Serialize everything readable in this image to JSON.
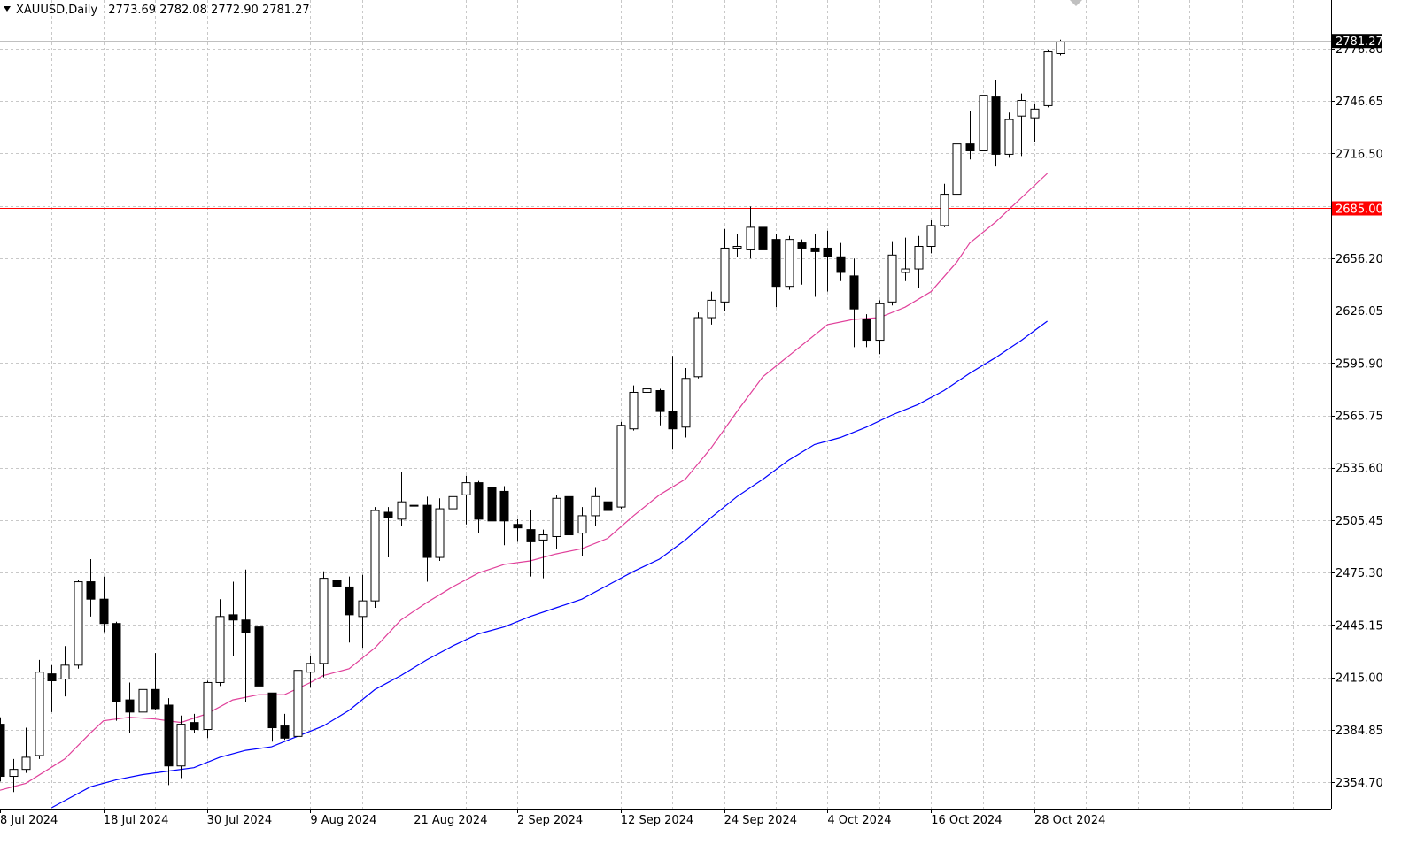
{
  "header": {
    "symbol": "XAUUSD,Daily",
    "ohlc": "2773.69 2782.08 2772.90 2781.27"
  },
  "price_tag": {
    "value": "2781.27",
    "price": 2781.27
  },
  "level_line": {
    "value": "2685.00",
    "price": 2685.0,
    "color": "#ff0000"
  },
  "colors": {
    "grid": "#c8c8c8",
    "candle_border": "#000000",
    "bull_fill": "#ffffff",
    "bear_fill": "#000000",
    "ma_fast": "#e0409a",
    "ma_slow": "#0000ff"
  },
  "chart_data": {
    "type": "candlestick",
    "price_axis": {
      "ticks": [
        2776.8,
        2746.65,
        2716.5,
        2686.35,
        2656.2,
        2626.05,
        2595.9,
        2565.75,
        2535.6,
        2505.45,
        2475.3,
        2445.15,
        2415.0,
        2384.85,
        2354.7
      ],
      "labels": [
        "2776.80",
        "2746.65",
        "2716.50",
        "2686.35",
        "2656.20",
        "2626.05",
        "2595.90",
        "2565.75",
        "2535.60",
        "2505.45",
        "2475.30",
        "2445.15",
        "2415.00",
        "2384.85",
        "2354.70"
      ],
      "range": [
        2340.0,
        2800.0
      ]
    },
    "time_axis": {
      "labels": [
        "8 Jul 2024",
        "18 Jul 2024",
        "30 Jul 2024",
        "9 Aug 2024",
        "21 Aug 2024",
        "2 Sep 2024",
        "12 Sep 2024",
        "24 Sep 2024",
        "4 Oct 2024",
        "16 Oct 2024",
        "28 Oct 2024"
      ],
      "label_bar_index": [
        0,
        8,
        16,
        24,
        32,
        40,
        48,
        56,
        64,
        72,
        80
      ]
    },
    "grid": true,
    "candles": [
      {
        "o": 2388,
        "h": 2392,
        "l": 2355,
        "c": 2358
      },
      {
        "o": 2358,
        "h": 2368,
        "l": 2349,
        "c": 2362
      },
      {
        "o": 2362,
        "h": 2386,
        "l": 2360,
        "c": 2369
      },
      {
        "o": 2370,
        "h": 2425,
        "l": 2368,
        "c": 2418
      },
      {
        "o": 2417,
        "h": 2422,
        "l": 2395,
        "c": 2413
      },
      {
        "o": 2414,
        "h": 2433,
        "l": 2404,
        "c": 2422
      },
      {
        "o": 2422,
        "h": 2471,
        "l": 2420,
        "c": 2470
      },
      {
        "o": 2470,
        "h": 2483,
        "l": 2450,
        "c": 2460
      },
      {
        "o": 2460,
        "h": 2473,
        "l": 2441,
        "c": 2446
      },
      {
        "o": 2446,
        "h": 2447,
        "l": 2390,
        "c": 2401
      },
      {
        "o": 2402,
        "h": 2412,
        "l": 2383,
        "c": 2395
      },
      {
        "o": 2395,
        "h": 2411,
        "l": 2389,
        "c": 2408
      },
      {
        "o": 2408,
        "h": 2429,
        "l": 2396,
        "c": 2397
      },
      {
        "o": 2399,
        "h": 2403,
        "l": 2353,
        "c": 2364
      },
      {
        "o": 2364,
        "h": 2393,
        "l": 2357,
        "c": 2388
      },
      {
        "o": 2389,
        "h": 2394,
        "l": 2383,
        "c": 2385
      },
      {
        "o": 2385,
        "h": 2413,
        "l": 2380,
        "c": 2412
      },
      {
        "o": 2412,
        "h": 2460,
        "l": 2410,
        "c": 2450
      },
      {
        "o": 2451,
        "h": 2470,
        "l": 2427,
        "c": 2448
      },
      {
        "o": 2448,
        "h": 2477,
        "l": 2401,
        "c": 2441
      },
      {
        "o": 2444,
        "h": 2464,
        "l": 2361,
        "c": 2410
      },
      {
        "o": 2406,
        "h": 2406,
        "l": 2378,
        "c": 2386
      },
      {
        "o": 2387,
        "h": 2394,
        "l": 2379,
        "c": 2380
      },
      {
        "o": 2381,
        "h": 2421,
        "l": 2380,
        "c": 2419
      },
      {
        "o": 2418,
        "h": 2427,
        "l": 2409,
        "c": 2423
      },
      {
        "o": 2423,
        "h": 2476,
        "l": 2415,
        "c": 2472
      },
      {
        "o": 2471,
        "h": 2475,
        "l": 2452,
        "c": 2467
      },
      {
        "o": 2467,
        "h": 2473,
        "l": 2435,
        "c": 2451
      },
      {
        "o": 2450,
        "h": 2474,
        "l": 2432,
        "c": 2459
      },
      {
        "o": 2459,
        "h": 2513,
        "l": 2455,
        "c": 2511
      },
      {
        "o": 2510,
        "h": 2513,
        "l": 2484,
        "c": 2507
      },
      {
        "o": 2506,
        "h": 2533,
        "l": 2502,
        "c": 2516
      },
      {
        "o": 2514,
        "h": 2522,
        "l": 2492,
        "c": 2514
      },
      {
        "o": 2514,
        "h": 2519,
        "l": 2470,
        "c": 2484
      },
      {
        "o": 2484,
        "h": 2518,
        "l": 2482,
        "c": 2512
      },
      {
        "o": 2512,
        "h": 2527,
        "l": 2508,
        "c": 2519
      },
      {
        "o": 2520,
        "h": 2531,
        "l": 2503,
        "c": 2527
      },
      {
        "o": 2527,
        "h": 2528,
        "l": 2498,
        "c": 2506
      },
      {
        "o": 2524,
        "h": 2531,
        "l": 2505,
        "c": 2505
      },
      {
        "o": 2522,
        "h": 2525,
        "l": 2491,
        "c": 2505
      },
      {
        "o": 2503,
        "h": 2506,
        "l": 2493,
        "c": 2501
      },
      {
        "o": 2500,
        "h": 2511,
        "l": 2473,
        "c": 2493
      },
      {
        "o": 2494,
        "h": 2500,
        "l": 2472,
        "c": 2497
      },
      {
        "o": 2496,
        "h": 2520,
        "l": 2489,
        "c": 2518
      },
      {
        "o": 2519,
        "h": 2528,
        "l": 2487,
        "c": 2497
      },
      {
        "o": 2498,
        "h": 2513,
        "l": 2485,
        "c": 2508
      },
      {
        "o": 2508,
        "h": 2524,
        "l": 2502,
        "c": 2519
      },
      {
        "o": 2516,
        "h": 2523,
        "l": 2504,
        "c": 2511
      },
      {
        "o": 2513,
        "h": 2562,
        "l": 2512,
        "c": 2560
      },
      {
        "o": 2558,
        "h": 2583,
        "l": 2557,
        "c": 2579
      },
      {
        "o": 2579,
        "h": 2590,
        "l": 2576,
        "c": 2581
      },
      {
        "o": 2580,
        "h": 2581,
        "l": 2560,
        "c": 2568
      },
      {
        "o": 2568,
        "h": 2600,
        "l": 2546,
        "c": 2558
      },
      {
        "o": 2559,
        "h": 2593,
        "l": 2553,
        "c": 2587
      },
      {
        "o": 2588,
        "h": 2625,
        "l": 2587,
        "c": 2622
      },
      {
        "o": 2622,
        "h": 2637,
        "l": 2618,
        "c": 2632
      },
      {
        "o": 2631,
        "h": 2673,
        "l": 2626,
        "c": 2662
      },
      {
        "o": 2662,
        "h": 2670,
        "l": 2657,
        "c": 2663
      },
      {
        "o": 2661,
        "h": 2686,
        "l": 2656,
        "c": 2674
      },
      {
        "o": 2674,
        "h": 2675,
        "l": 2640,
        "c": 2661
      },
      {
        "o": 2667,
        "h": 2670,
        "l": 2628,
        "c": 2640
      },
      {
        "o": 2640,
        "h": 2669,
        "l": 2638,
        "c": 2667
      },
      {
        "o": 2665,
        "h": 2667,
        "l": 2641,
        "c": 2662
      },
      {
        "o": 2662,
        "h": 2670,
        "l": 2634,
        "c": 2660
      },
      {
        "o": 2662,
        "h": 2672,
        "l": 2637,
        "c": 2657
      },
      {
        "o": 2657,
        "h": 2665,
        "l": 2643,
        "c": 2648
      },
      {
        "o": 2646,
        "h": 2656,
        "l": 2605,
        "c": 2627
      },
      {
        "o": 2621,
        "h": 2624,
        "l": 2605,
        "c": 2609
      },
      {
        "o": 2609,
        "h": 2632,
        "l": 2601,
        "c": 2630
      },
      {
        "o": 2631,
        "h": 2666,
        "l": 2629,
        "c": 2658
      },
      {
        "o": 2648,
        "h": 2668,
        "l": 2643,
        "c": 2650
      },
      {
        "o": 2650,
        "h": 2669,
        "l": 2639,
        "c": 2663
      },
      {
        "o": 2663,
        "h": 2678,
        "l": 2659,
        "c": 2675
      },
      {
        "o": 2675,
        "h": 2699,
        "l": 2674,
        "c": 2693
      },
      {
        "o": 2693,
        "h": 2722,
        "l": 2693,
        "c": 2722
      },
      {
        "o": 2722,
        "h": 2741,
        "l": 2713,
        "c": 2718
      },
      {
        "o": 2718,
        "h": 2750,
        "l": 2718,
        "c": 2750
      },
      {
        "o": 2749,
        "h": 2759,
        "l": 2709,
        "c": 2716
      },
      {
        "o": 2716,
        "h": 2740,
        "l": 2714,
        "c": 2736
      },
      {
        "o": 2738,
        "h": 2751,
        "l": 2715,
        "c": 2747
      },
      {
        "o": 2737,
        "h": 2745,
        "l": 2723,
        "c": 2742
      },
      {
        "o": 2744,
        "h": 2776,
        "l": 2743,
        "c": 2775
      },
      {
        "o": 2774,
        "h": 2782,
        "l": 2773,
        "c": 2781
      }
    ],
    "ma_fast": [
      [
        0,
        2350
      ],
      [
        2,
        2354
      ],
      [
        5,
        2368
      ],
      [
        7,
        2383
      ],
      [
        8,
        2390
      ],
      [
        10,
        2392
      ],
      [
        12,
        2391
      ],
      [
        14,
        2389
      ],
      [
        16,
        2394
      ],
      [
        18,
        2402
      ],
      [
        20,
        2405
      ],
      [
        22,
        2405
      ],
      [
        24,
        2412
      ],
      [
        25,
        2416
      ],
      [
        27,
        2420
      ],
      [
        29,
        2432
      ],
      [
        31,
        2448
      ],
      [
        33,
        2458
      ],
      [
        35,
        2467
      ],
      [
        37,
        2475
      ],
      [
        39,
        2480
      ],
      [
        41,
        2482
      ],
      [
        43,
        2486
      ],
      [
        45,
        2489
      ],
      [
        47,
        2495
      ],
      [
        49,
        2508
      ],
      [
        51,
        2520
      ],
      [
        53,
        2529
      ],
      [
        55,
        2547
      ],
      [
        57,
        2568
      ],
      [
        59,
        2588
      ],
      [
        61,
        2600
      ],
      [
        63,
        2612
      ],
      [
        64,
        2618
      ],
      [
        66,
        2621
      ],
      [
        68,
        2622
      ],
      [
        70,
        2628
      ],
      [
        72,
        2637
      ],
      [
        74,
        2654
      ],
      [
        75,
        2665
      ],
      [
        77,
        2677
      ],
      [
        79,
        2691
      ],
      [
        81,
        2705
      ]
    ],
    "ma_slow": [
      [
        4,
        2340
      ],
      [
        5,
        2344
      ],
      [
        7,
        2352
      ],
      [
        9,
        2356
      ],
      [
        11,
        2359
      ],
      [
        13,
        2361
      ],
      [
        15,
        2363
      ],
      [
        17,
        2369
      ],
      [
        19,
        2373
      ],
      [
        21,
        2375
      ],
      [
        23,
        2381
      ],
      [
        25,
        2387
      ],
      [
        27,
        2396
      ],
      [
        29,
        2408
      ],
      [
        31,
        2416
      ],
      [
        33,
        2425
      ],
      [
        35,
        2433
      ],
      [
        37,
        2440
      ],
      [
        39,
        2444
      ],
      [
        41,
        2450
      ],
      [
        43,
        2455
      ],
      [
        45,
        2460
      ],
      [
        47,
        2468
      ],
      [
        49,
        2476
      ],
      [
        51,
        2483
      ],
      [
        53,
        2494
      ],
      [
        55,
        2507
      ],
      [
        57,
        2519
      ],
      [
        59,
        2529
      ],
      [
        61,
        2540
      ],
      [
        63,
        2549
      ],
      [
        65,
        2553
      ],
      [
        67,
        2559
      ],
      [
        69,
        2566
      ],
      [
        71,
        2572
      ],
      [
        73,
        2580
      ],
      [
        75,
        2590
      ],
      [
        77,
        2599
      ],
      [
        79,
        2609
      ],
      [
        81,
        2620
      ]
    ]
  }
}
